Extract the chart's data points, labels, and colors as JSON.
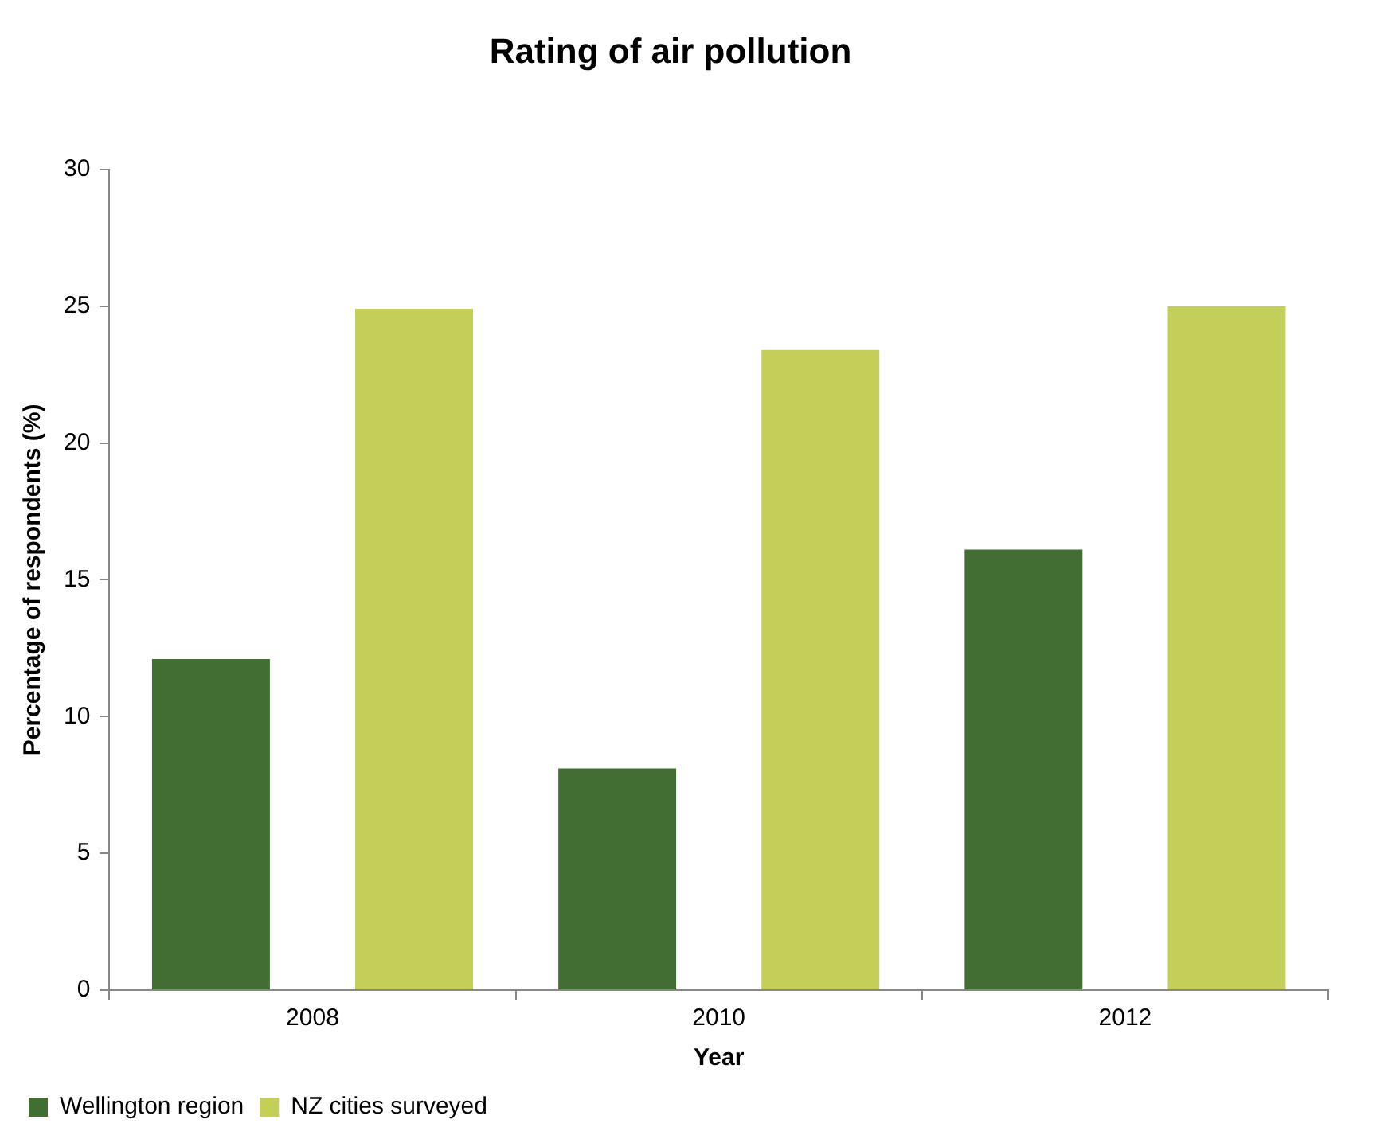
{
  "chart_data": {
    "type": "bar",
    "title": "Rating of air pollution",
    "xlabel": "Year",
    "ylabel": "Percentage of respondents (%)",
    "categories": [
      "2008",
      "2010",
      "2012"
    ],
    "series": [
      {
        "name": "Wellington region",
        "color": "#426e34",
        "values": [
          12.1,
          8.1,
          16.1
        ]
      },
      {
        "name": "NZ cities surveyed",
        "color": "#c3cf58",
        "values": [
          24.9,
          23.4,
          25.0
        ]
      }
    ],
    "ylim": [
      0,
      30
    ],
    "yticks": [
      0,
      5,
      10,
      15,
      20,
      25,
      30
    ],
    "grid": false,
    "legend": "bottom left"
  }
}
